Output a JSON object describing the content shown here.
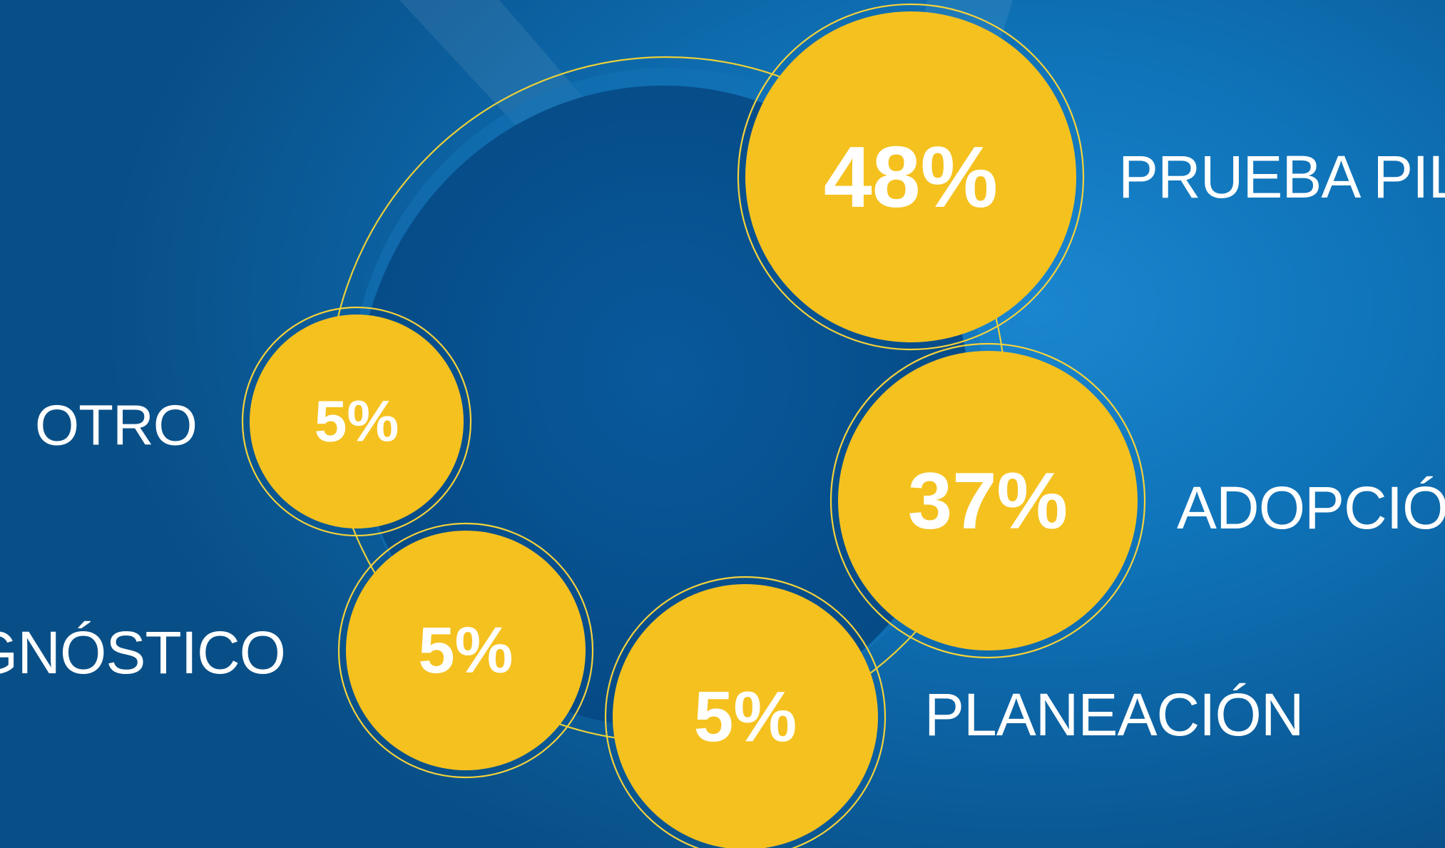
{
  "colors": {
    "bubble_fill": "#f5c11f",
    "bubble_ring": "#f5d23a",
    "center_disc": "#075292",
    "text": "#ffffff",
    "background": "#0f73b8"
  },
  "chart_data": {
    "type": "bubble",
    "title": "",
    "unit": "%",
    "categories": [
      "PRUEBA PILOTO",
      "ADOPCIÓN",
      "PLANEACIÓN",
      "DIAGNÓSTICO",
      "OTRO"
    ],
    "values": [
      48,
      37,
      5,
      5,
      5
    ],
    "labels": [
      "48%",
      "37%",
      "5%",
      "5%",
      "5%"
    ]
  }
}
